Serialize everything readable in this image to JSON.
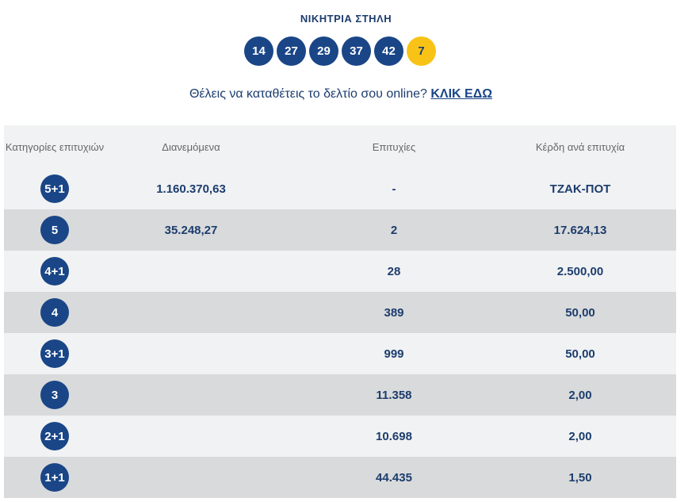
{
  "header": {
    "title": "ΝΙΚΗΤΡΙΑ ΣΤΗΛΗ"
  },
  "winning_numbers": [
    "14",
    "27",
    "29",
    "37",
    "42"
  ],
  "bonus_number": "7",
  "cta": {
    "text": "Θέλεις να καταθέτεις το δελτίο σου online?",
    "link": "ΚΛΙΚ ΕΔΩ"
  },
  "table": {
    "headers": {
      "category": "Κατηγορίες επιτυχιών",
      "distributed": "Διανεμόμενα",
      "winners": "Επιτυχίες",
      "prize": "Κέρδη ανά επιτυχία"
    },
    "rows": [
      {
        "category": "5+1",
        "distributed": "1.160.370,63",
        "winners": "-",
        "prize": "ΤΖΑΚ-ΠΟΤ"
      },
      {
        "category": "5",
        "distributed": "35.248,27",
        "winners": "2",
        "prize": "17.624,13"
      },
      {
        "category": "4+1",
        "distributed": "",
        "winners": "28",
        "prize": "2.500,00"
      },
      {
        "category": "4",
        "distributed": "",
        "winners": "389",
        "prize": "50,00"
      },
      {
        "category": "3+1",
        "distributed": "",
        "winners": "999",
        "prize": "50,00"
      },
      {
        "category": "3",
        "distributed": "",
        "winners": "11.358",
        "prize": "2,00"
      },
      {
        "category": "2+1",
        "distributed": "",
        "winners": "10.698",
        "prize": "2,00"
      },
      {
        "category": "1+1",
        "distributed": "",
        "winners": "44.435",
        "prize": "1,50"
      }
    ]
  },
  "colors": {
    "navy": "#1a4687",
    "bonus_yellow": "#f8c316",
    "row_light": "#f1f2f3",
    "row_dark": "#d9dadb"
  }
}
